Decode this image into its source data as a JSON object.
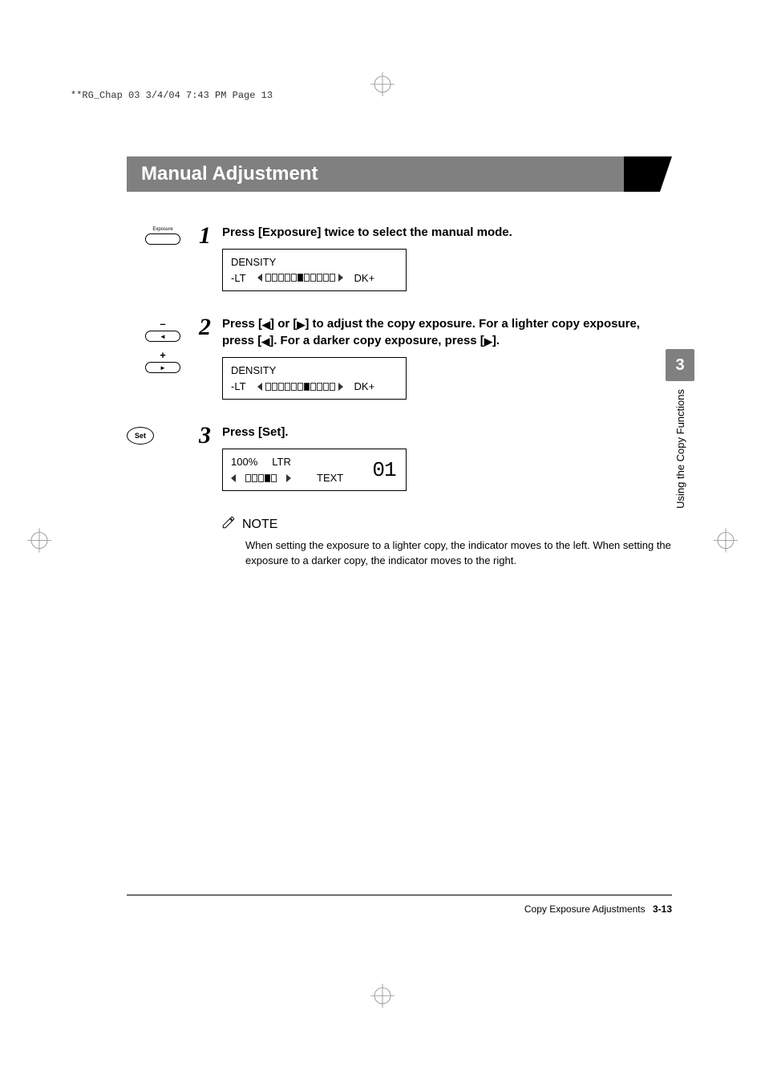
{
  "header": {
    "runhead": "**RG_Chap 03  3/4/04  7:43 PM  Page 13"
  },
  "section_title": "Manual Adjustment",
  "steps": {
    "s1": {
      "num": "1",
      "icon_label": "Exposure",
      "instruction": "Press [Exposure] twice to select the manual mode.",
      "lcd": {
        "line1": "DENSITY",
        "lt": "-LT",
        "dk": "DK+",
        "filled_index": 5,
        "total_segments": 11
      }
    },
    "s2": {
      "num": "2",
      "instr_a": "Press [",
      "instr_b": "] or [",
      "instr_c": "] to adjust the copy exposure. For a lighter copy exposure, press [",
      "instr_d": "]. For a darker copy exposure, press [",
      "instr_e": "].",
      "arrow_l": "◀",
      "arrow_r": "▶",
      "lcd": {
        "line1": "DENSITY",
        "lt": "-LT",
        "dk": "DK+",
        "filled_index": 6,
        "total_segments": 11
      }
    },
    "s3": {
      "num": "3",
      "set_label": "Set",
      "instruction": "Press [Set].",
      "lcd": {
        "zoom": "100%",
        "paper": "LTR",
        "mode": "TEXT",
        "count": "01",
        "filled_index": 3,
        "total_segments": 5
      }
    }
  },
  "note": {
    "heading": "NOTE",
    "text": "When setting the exposure to a lighter copy, the indicator moves to the left. When setting the exposure to a darker copy, the indicator moves to the right."
  },
  "side": {
    "chapter": "3",
    "label": "Using the Copy Functions"
  },
  "footer": {
    "title": "Copy Exposure Adjustments",
    "page": "3-13"
  },
  "colors": {
    "gray_bar": "#808080",
    "text": "#000000",
    "bg": "#ffffff"
  }
}
